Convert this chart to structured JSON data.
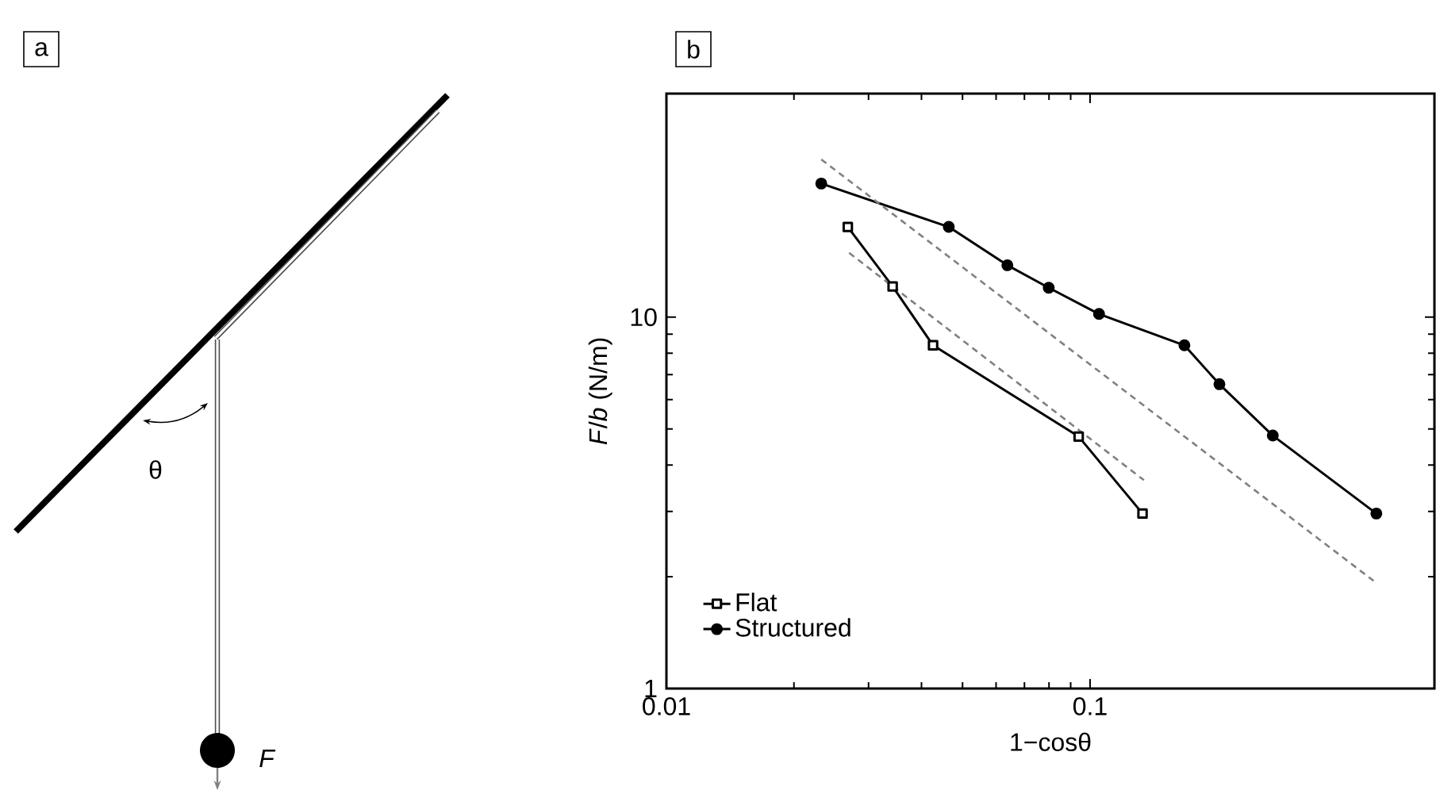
{
  "chart_data": {
    "type": "line",
    "xlabel": "1−cosθ",
    "ylabel": "*F*/*b* (N/m)",
    "log": "xy",
    "xlim": [
      0.01,
      0.65
    ],
    "ylim": [
      1,
      40
    ],
    "xticks": [
      0.01,
      0.1
    ],
    "yticks": [
      1,
      10
    ],
    "legend": "bottom left",
    "annotations": [
      "a",
      "b",
      "θ",
      "F"
    ],
    "series": [
      {
        "name": "Flat",
        "color": "#000000",
        "marker": "square",
        "line_style": "solid",
        "x": [
          0.0268,
          0.0342,
          0.0426,
          0.094,
          0.133
        ],
        "values": [
          17.5,
          12.1,
          8.4,
          4.77,
          2.96
        ]
      },
      {
        "name": "Structured",
        "color": "#000000",
        "marker": "circle",
        "line_style": "solid",
        "x": [
          0.0232,
          0.0464,
          0.0638,
          0.0799,
          0.105,
          0.167,
          0.202,
          0.27,
          0.474
        ],
        "values": [
          22.9,
          17.5,
          13.8,
          12.0,
          10.2,
          8.4,
          6.6,
          4.8,
          2.96
        ]
      },
      {
        "color": "#808080",
        "marker": "none",
        "line_style": "dashed",
        "x": [
          0.027,
          0.134
        ],
        "values": [
          14.9,
          3.64
        ]
      },
      {
        "color": "#808080",
        "marker": "none",
        "line_style": "dashed",
        "x": [
          0.0232,
          0.467
        ],
        "values": [
          26.6,
          1.95
        ]
      }
    ]
  }
}
